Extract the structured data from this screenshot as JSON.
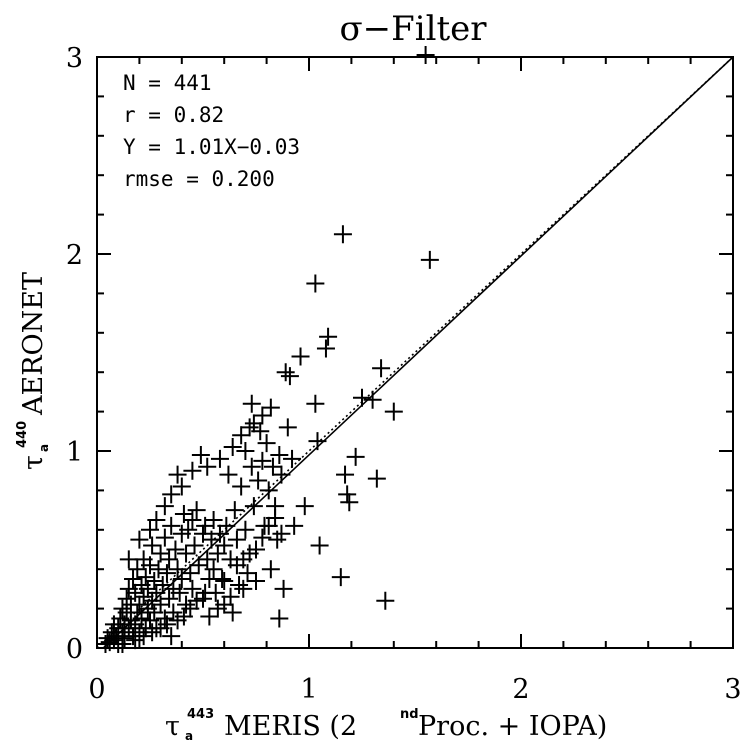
{
  "chart_data": {
    "type": "scatter",
    "title": "σ−Filter",
    "xlabel": {
      "symbol": "τ",
      "subscript": "a",
      "superscript": "443",
      "text_before": " MERIS (2",
      "text_sup": "nd",
      "text_after": " Proc. + IOPA)"
    },
    "ylabel": {
      "symbol": "τ",
      "subscript": "a",
      "superscript": "440",
      "text": " AERONET"
    },
    "xlim": [
      0,
      3
    ],
    "ylim": [
      0,
      3
    ],
    "x_ticks": [
      0,
      1,
      2,
      3
    ],
    "x_tick_labels": [
      "0",
      "1",
      "2",
      "3"
    ],
    "y_ticks": [
      0,
      1,
      2,
      3
    ],
    "y_tick_labels": [
      "0",
      "1",
      "2",
      "3"
    ],
    "stats": [
      "N = 441",
      "r = 0.82",
      "Y = 1.01X−0.03",
      "rmse = 0.200"
    ],
    "fit_line": {
      "slope": 1.01,
      "intercept": -0.03,
      "style": "solid"
    },
    "one_to_one_line": {
      "slope": 1.0,
      "intercept": 0.0,
      "style": "dotted"
    },
    "marker": "+",
    "points": [
      [
        0.04,
        0.02
      ],
      [
        0.05,
        0.05
      ],
      [
        0.06,
        0.03
      ],
      [
        0.07,
        0.08
      ],
      [
        0.08,
        0.04
      ],
      [
        0.08,
        0.12
      ],
      [
        0.09,
        0.06
      ],
      [
        0.1,
        0.1
      ],
      [
        0.1,
        0.02
      ],
      [
        0.11,
        0.15
      ],
      [
        0.12,
        0.08
      ],
      [
        0.12,
        0.2
      ],
      [
        0.13,
        0.05
      ],
      [
        0.13,
        0.12
      ],
      [
        0.14,
        0.18
      ],
      [
        0.14,
        0.25
      ],
      [
        0.15,
        0.1
      ],
      [
        0.15,
        0.3
      ],
      [
        0.16,
        0.14
      ],
      [
        0.16,
        0.22
      ],
      [
        0.17,
        0.06
      ],
      [
        0.17,
        0.35
      ],
      [
        0.18,
        0.12
      ],
      [
        0.18,
        0.28
      ],
      [
        0.19,
        0.18
      ],
      [
        0.19,
        0.4
      ],
      [
        0.2,
        0.08
      ],
      [
        0.2,
        0.22
      ],
      [
        0.21,
        0.32
      ],
      [
        0.21,
        0.15
      ],
      [
        0.22,
        0.26
      ],
      [
        0.22,
        0.45
      ],
      [
        0.23,
        0.1
      ],
      [
        0.23,
        0.36
      ],
      [
        0.24,
        0.2
      ],
      [
        0.24,
        0.3
      ],
      [
        0.25,
        0.14
      ],
      [
        0.25,
        0.42
      ],
      [
        0.26,
        0.24
      ],
      [
        0.26,
        0.52
      ],
      [
        0.27,
        0.18
      ],
      [
        0.27,
        0.34
      ],
      [
        0.28,
        0.28
      ],
      [
        0.28,
        0.1
      ],
      [
        0.29,
        0.4
      ],
      [
        0.3,
        0.22
      ],
      [
        0.3,
        0.48
      ],
      [
        0.31,
        0.32
      ],
      [
        0.32,
        0.15
      ],
      [
        0.32,
        0.56
      ],
      [
        0.33,
        0.38
      ],
      [
        0.34,
        0.25
      ],
      [
        0.34,
        0.45
      ],
      [
        0.35,
        0.62
      ],
      [
        0.36,
        0.3
      ],
      [
        0.36,
        0.18
      ],
      [
        0.37,
        0.5
      ],
      [
        0.38,
        0.4
      ],
      [
        0.38,
        0.88
      ],
      [
        0.39,
        0.28
      ],
      [
        0.4,
        0.58
      ],
      [
        0.4,
        0.35
      ],
      [
        0.41,
        0.68
      ],
      [
        0.42,
        0.22
      ],
      [
        0.42,
        0.48
      ],
      [
        0.43,
        0.6
      ],
      [
        0.44,
        0.38
      ],
      [
        0.45,
        0.65
      ],
      [
        0.45,
        0.3
      ],
      [
        0.46,
        0.52
      ],
      [
        0.47,
        0.7
      ],
      [
        0.48,
        0.42
      ],
      [
        0.49,
        0.98
      ],
      [
        0.5,
        0.58
      ],
      [
        0.5,
        0.25
      ],
      [
        0.51,
        0.62
      ],
      [
        0.52,
        0.45
      ],
      [
        0.53,
        0.35
      ],
      [
        0.54,
        0.55
      ],
      [
        0.55,
        0.65
      ],
      [
        0.55,
        0.4
      ],
      [
        0.56,
        0.28
      ],
      [
        0.57,
        0.48
      ],
      [
        0.58,
        0.58
      ],
      [
        0.59,
        0.35
      ],
      [
        0.6,
        0.52
      ],
      [
        0.6,
        0.22
      ],
      [
        0.61,
        0.62
      ],
      [
        0.62,
        0.88
      ],
      [
        0.63,
        0.45
      ],
      [
        0.64,
        0.18
      ],
      [
        0.65,
        0.7
      ],
      [
        0.66,
        0.55
      ],
      [
        0.67,
        0.32
      ],
      [
        0.68,
        0.82
      ],
      [
        0.69,
        0.45
      ],
      [
        0.7,
        1.0
      ],
      [
        0.7,
        0.6
      ],
      [
        0.71,
        0.38
      ],
      [
        0.72,
        1.12
      ],
      [
        0.73,
        1.24
      ],
      [
        0.73,
        0.92
      ],
      [
        0.74,
        0.72
      ],
      [
        0.75,
        0.5
      ],
      [
        0.76,
        0.85
      ],
      [
        0.77,
        1.1
      ],
      [
        0.78,
        0.95
      ],
      [
        0.79,
        0.62
      ],
      [
        0.8,
        1.04
      ],
      [
        0.81,
        0.8
      ],
      [
        0.82,
        0.4
      ],
      [
        0.83,
        0.92
      ],
      [
        0.84,
        0.72
      ],
      [
        0.85,
        0.55
      ],
      [
        0.86,
        0.15
      ],
      [
        0.87,
        0.88
      ],
      [
        0.88,
        0.3
      ],
      [
        0.89,
        1.4
      ],
      [
        0.9,
        1.12
      ],
      [
        0.91,
        1.38
      ],
      [
        0.92,
        0.96
      ],
      [
        0.93,
        0.62
      ],
      [
        0.96,
        1.48
      ],
      [
        0.98,
        0.72
      ],
      [
        1.03,
        1.85
      ],
      [
        1.03,
        1.24
      ],
      [
        1.04,
        1.05
      ],
      [
        1.05,
        0.52
      ],
      [
        1.08,
        1.52
      ],
      [
        1.09,
        1.58
      ],
      [
        1.16,
        2.1
      ],
      [
        1.17,
        0.88
      ],
      [
        1.18,
        0.78
      ],
      [
        1.19,
        0.74
      ],
      [
        1.22,
        0.97
      ],
      [
        1.25,
        1.27
      ],
      [
        1.3,
        1.26
      ],
      [
        1.32,
        0.86
      ],
      [
        1.34,
        1.42
      ],
      [
        1.36,
        0.24
      ],
      [
        1.4,
        1.2
      ],
      [
        1.15,
        0.36
      ],
      [
        1.55,
        3.01
      ],
      [
        1.57,
        1.97
      ],
      [
        0.12,
        0.02
      ],
      [
        0.18,
        0.04
      ],
      [
        0.22,
        0.06
      ],
      [
        0.26,
        0.08
      ],
      [
        0.3,
        0.1
      ],
      [
        0.33,
        0.12
      ],
      [
        0.35,
        0.06
      ],
      [
        0.38,
        0.14
      ],
      [
        0.41,
        0.16
      ],
      [
        0.44,
        0.2
      ],
      [
        0.47,
        0.24
      ],
      [
        0.51,
        0.28
      ],
      [
        0.53,
        0.16
      ],
      [
        0.57,
        0.2
      ],
      [
        0.6,
        0.34
      ],
      [
        0.63,
        0.26
      ],
      [
        0.66,
        0.42
      ],
      [
        0.69,
        0.3
      ],
      [
        0.72,
        0.48
      ],
      [
        0.75,
        0.34
      ],
      [
        0.78,
        0.56
      ],
      [
        0.81,
        0.62
      ],
      [
        0.84,
        0.66
      ],
      [
        0.87,
        0.58
      ],
      [
        0.15,
        0.45
      ],
      [
        0.2,
        0.55
      ],
      [
        0.25,
        0.6
      ],
      [
        0.28,
        0.65
      ],
      [
        0.32,
        0.72
      ],
      [
        0.35,
        0.78
      ],
      [
        0.4,
        0.82
      ],
      [
        0.45,
        0.9
      ],
      [
        0.52,
        0.92
      ],
      [
        0.58,
        0.96
      ],
      [
        0.64,
        1.02
      ],
      [
        0.68,
        1.08
      ],
      [
        0.74,
        1.14
      ],
      [
        0.78,
        1.18
      ],
      [
        0.82,
        1.22
      ],
      [
        0.86,
        0.98
      ]
    ]
  }
}
